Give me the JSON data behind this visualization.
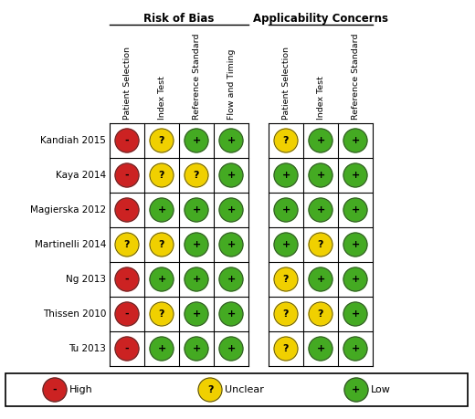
{
  "studies": [
    "Kandiah 2015",
    "Kaya 2014",
    "Magierska 2012",
    "Martinelli 2014",
    "Ng 2013",
    "Thissen 2010",
    "Tu 2013"
  ],
  "rob_columns": [
    "Patient Selection",
    "Index Test",
    "Reference Standard",
    "Flow and Timing"
  ],
  "ac_columns": [
    "Patient Selection",
    "Index Test",
    "Reference Standard"
  ],
  "rob_data": [
    [
      "H",
      "U",
      "L",
      "L"
    ],
    [
      "H",
      "U",
      "U",
      "L"
    ],
    [
      "H",
      "L",
      "L",
      "L"
    ],
    [
      "U",
      "U",
      "L",
      "L"
    ],
    [
      "H",
      "L",
      "L",
      "L"
    ],
    [
      "H",
      "U",
      "L",
      "L"
    ],
    [
      "H",
      "L",
      "L",
      "L"
    ]
  ],
  "ac_data": [
    [
      "U",
      "L",
      "L"
    ],
    [
      "L",
      "L",
      "L"
    ],
    [
      "L",
      "L",
      "L"
    ],
    [
      "L",
      "U",
      "L"
    ],
    [
      "U",
      "L",
      "L"
    ],
    [
      "U",
      "U",
      "L"
    ],
    [
      "U",
      "L",
      "L"
    ]
  ],
  "color_H": "#cc2222",
  "color_U": "#f0d000",
  "color_L": "#44aa22",
  "bg_color": "#ffffff",
  "rob_header": "Risk of Bias",
  "ac_header": "Applicability Concerns",
  "legend_high": "High",
  "legend_unclear": "Unclear",
  "legend_low": "Low"
}
